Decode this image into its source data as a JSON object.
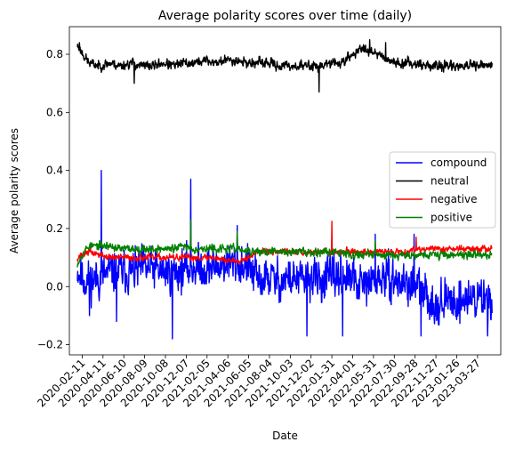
{
  "chart_data": {
    "type": "line",
    "title": "Average polarity scores over time (daily)",
    "xlabel": "Date",
    "ylabel": "Average polarity scores",
    "x_start": "2020-01-28",
    "x_end": "2023-05-08",
    "xlim": [
      "2020-01-05",
      "2023-06-02"
    ],
    "ylim": [
      -0.235,
      0.895
    ],
    "x_ticks": [
      "2020-02-11",
      "2020-04-11",
      "2020-06-10",
      "2020-08-09",
      "2020-10-08",
      "2020-12-07",
      "2021-02-05",
      "2021-04-06",
      "2021-06-05",
      "2021-08-04",
      "2021-10-03",
      "2021-12-02",
      "2022-01-31",
      "2022-04-01",
      "2022-05-31",
      "2022-07-30",
      "2022-09-28",
      "2022-11-27",
      "2023-01-26",
      "2023-03-27"
    ],
    "y_ticks": [
      -0.2,
      0.0,
      0.2,
      0.4,
      0.6,
      0.8
    ],
    "y_tick_labels": [
      "−0.2",
      "0.0",
      "0.2",
      "0.4",
      "0.6",
      "0.8"
    ],
    "grid": false,
    "legend_position": "center-right",
    "series": [
      {
        "name": "compound",
        "color": "#0000ff",
        "dates": [
          "2020-01-28",
          "2020-02-10",
          "2020-03-01",
          "2020-04-01",
          "2020-05-01",
          "2020-06-01",
          "2020-07-01",
          "2020-08-01",
          "2020-09-01",
          "2020-10-01",
          "2020-11-01",
          "2020-12-01",
          "2021-01-01",
          "2021-02-01",
          "2021-03-01",
          "2021-04-01",
          "2021-05-01",
          "2021-06-01",
          "2021-07-01",
          "2021-08-01",
          "2021-09-01",
          "2021-10-01",
          "2021-11-01",
          "2021-12-01",
          "2022-01-01",
          "2022-02-01",
          "2022-03-01",
          "2022-04-01",
          "2022-05-01",
          "2022-06-01",
          "2022-07-01",
          "2022-08-01",
          "2022-09-01",
          "2022-10-01",
          "2022-11-01",
          "2022-12-01",
          "2023-01-01",
          "2023-02-01",
          "2023-03-01",
          "2023-04-01",
          "2023-05-08"
        ],
        "values": [
          0.06,
          0.03,
          0.02,
          0.03,
          0.05,
          0.05,
          0.05,
          0.06,
          0.06,
          0.05,
          0.05,
          0.06,
          0.07,
          0.06,
          0.07,
          0.08,
          0.08,
          0.07,
          0.02,
          0.03,
          0.02,
          0.03,
          0.02,
          0.03,
          0.02,
          0.03,
          0.04,
          0.02,
          0.0,
          0.02,
          0.03,
          0.02,
          0.01,
          0.0,
          -0.04,
          -0.06,
          -0.05,
          -0.05,
          -0.04,
          -0.04,
          -0.04
        ],
        "noise": 0.05,
        "seed": 11,
        "spikes": [
          {
            "date": "2020-04-06",
            "value": 0.4
          },
          {
            "date": "2020-12-20",
            "value": 0.37
          },
          {
            "date": "2021-05-03",
            "value": 0.21
          },
          {
            "date": "2022-06-05",
            "value": 0.18
          },
          {
            "date": "2022-09-25",
            "value": 0.18
          },
          {
            "date": "2020-03-03",
            "value": -0.1
          },
          {
            "date": "2020-05-20",
            "value": -0.12
          },
          {
            "date": "2020-10-28",
            "value": -0.18
          },
          {
            "date": "2021-11-20",
            "value": -0.17
          },
          {
            "date": "2022-03-03",
            "value": -0.17
          },
          {
            "date": "2022-10-15",
            "value": -0.17
          },
          {
            "date": "2023-04-25",
            "value": -0.17
          }
        ]
      },
      {
        "name": "neutral",
        "color": "#000000",
        "dates": [
          "2020-01-28",
          "2020-02-08",
          "2020-03-01",
          "2020-04-01",
          "2020-05-01",
          "2020-06-01",
          "2020-07-01",
          "2020-08-01",
          "2020-09-01",
          "2020-10-01",
          "2020-11-01",
          "2020-12-01",
          "2021-01-01",
          "2021-02-01",
          "2021-03-01",
          "2021-04-01",
          "2021-05-01",
          "2021-06-01",
          "2021-07-01",
          "2021-08-01",
          "2021-09-01",
          "2021-10-01",
          "2021-11-01",
          "2021-12-01",
          "2022-01-01",
          "2022-02-01",
          "2022-03-01",
          "2022-04-01",
          "2022-05-01",
          "2022-06-01",
          "2022-07-01",
          "2022-08-01",
          "2022-09-01",
          "2022-10-01",
          "2022-11-01",
          "2022-12-01",
          "2023-01-01",
          "2023-02-01",
          "2023-03-01",
          "2023-04-01",
          "2023-05-08"
        ],
        "values": [
          0.83,
          0.81,
          0.77,
          0.76,
          0.77,
          0.76,
          0.77,
          0.76,
          0.76,
          0.77,
          0.76,
          0.77,
          0.77,
          0.78,
          0.77,
          0.78,
          0.78,
          0.77,
          0.77,
          0.77,
          0.76,
          0.76,
          0.76,
          0.76,
          0.76,
          0.77,
          0.77,
          0.8,
          0.82,
          0.81,
          0.79,
          0.77,
          0.77,
          0.77,
          0.76,
          0.76,
          0.76,
          0.76,
          0.76,
          0.76,
          0.76
        ],
        "noise": 0.012,
        "seed": 23,
        "spikes": [
          {
            "date": "2020-02-03",
            "value": 0.84
          },
          {
            "date": "2020-07-10",
            "value": 0.7
          },
          {
            "date": "2021-12-25",
            "value": 0.67
          },
          {
            "date": "2022-05-20",
            "value": 0.85
          },
          {
            "date": "2022-07-05",
            "value": 0.84
          }
        ]
      },
      {
        "name": "negative",
        "color": "#ff0000",
        "dates": [
          "2020-01-28",
          "2020-02-10",
          "2020-03-01",
          "2020-04-01",
          "2020-05-01",
          "2020-06-01",
          "2020-07-01",
          "2020-08-01",
          "2020-09-01",
          "2020-10-01",
          "2020-11-01",
          "2020-12-01",
          "2021-01-01",
          "2021-02-01",
          "2021-03-01",
          "2021-04-01",
          "2021-05-01",
          "2021-06-01",
          "2021-07-01",
          "2021-08-01",
          "2021-09-01",
          "2021-10-01",
          "2021-11-01",
          "2021-12-01",
          "2022-01-01",
          "2022-02-01",
          "2022-03-01",
          "2022-04-01",
          "2022-05-01",
          "2022-06-01",
          "2022-07-01",
          "2022-08-01",
          "2022-09-01",
          "2022-10-01",
          "2022-11-01",
          "2022-12-01",
          "2023-01-01",
          "2023-02-01",
          "2023-03-01",
          "2023-04-01",
          "2023-05-08"
        ],
        "values": [
          0.1,
          0.11,
          0.12,
          0.11,
          0.1,
          0.1,
          0.1,
          0.1,
          0.1,
          0.1,
          0.1,
          0.1,
          0.1,
          0.1,
          0.1,
          0.09,
          0.09,
          0.1,
          0.12,
          0.12,
          0.12,
          0.12,
          0.12,
          0.12,
          0.12,
          0.12,
          0.12,
          0.12,
          0.12,
          0.12,
          0.12,
          0.12,
          0.12,
          0.13,
          0.13,
          0.13,
          0.13,
          0.13,
          0.13,
          0.13,
          0.13
        ],
        "noise": 0.008,
        "seed": 37,
        "spikes": [
          {
            "date": "2022-01-31",
            "value": 0.225
          },
          {
            "date": "2022-10-01",
            "value": 0.17
          }
        ]
      },
      {
        "name": "positive",
        "color": "#008000",
        "dates": [
          "2020-01-28",
          "2020-02-10",
          "2020-03-01",
          "2020-04-01",
          "2020-05-01",
          "2020-06-01",
          "2020-07-01",
          "2020-08-01",
          "2020-09-01",
          "2020-10-01",
          "2020-11-01",
          "2020-12-01",
          "2021-01-01",
          "2021-02-01",
          "2021-03-01",
          "2021-04-01",
          "2021-05-01",
          "2021-06-01",
          "2021-07-01",
          "2021-08-01",
          "2021-09-01",
          "2021-10-01",
          "2021-11-01",
          "2021-12-01",
          "2022-01-01",
          "2022-02-01",
          "2022-03-01",
          "2022-04-01",
          "2022-05-01",
          "2022-06-01",
          "2022-07-01",
          "2022-08-01",
          "2022-09-01",
          "2022-10-01",
          "2022-11-01",
          "2022-12-01",
          "2023-01-01",
          "2023-02-01",
          "2023-03-01",
          "2023-04-01",
          "2023-05-08"
        ],
        "values": [
          0.08,
          0.11,
          0.14,
          0.14,
          0.14,
          0.13,
          0.13,
          0.13,
          0.13,
          0.13,
          0.13,
          0.14,
          0.13,
          0.13,
          0.13,
          0.13,
          0.13,
          0.12,
          0.12,
          0.12,
          0.12,
          0.12,
          0.12,
          0.12,
          0.12,
          0.12,
          0.12,
          0.11,
          0.11,
          0.11,
          0.11,
          0.11,
          0.11,
          0.11,
          0.11,
          0.11,
          0.11,
          0.11,
          0.11,
          0.11,
          0.11
        ],
        "noise": 0.01,
        "seed": 53,
        "spikes": [
          {
            "date": "2020-12-20",
            "value": 0.23
          },
          {
            "date": "2021-05-03",
            "value": 0.19
          },
          {
            "date": "2022-06-05",
            "value": 0.16
          }
        ]
      }
    ]
  }
}
